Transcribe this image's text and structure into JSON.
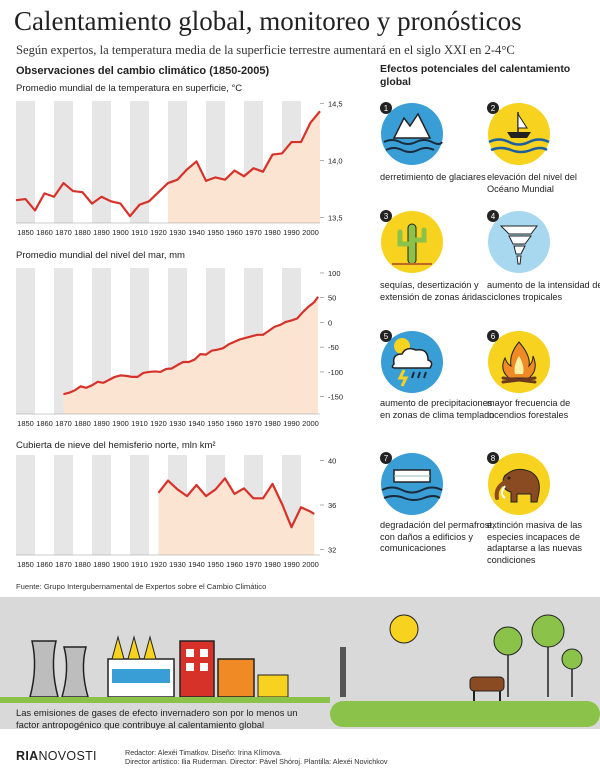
{
  "title": "Calentamiento global, monitoreo y pronósticos",
  "subtitle": "Según expertos, la temperatura media de la superficie terrestre aumentará en el siglo XXI en 2-4°C",
  "observations_title": "Observaciones del cambio climático (1850-2005)",
  "source": "Fuente: Grupo Intergubernamental de Expertos sobre el Cambio Climático",
  "colors": {
    "line": "#d7322a",
    "fill": "#fbe5d2",
    "band": "#e6e6e6",
    "accent_blue": "#3a9ed6",
    "accent_yellow": "#f7d21e",
    "accent_orange": "#f08a24"
  },
  "chart_data": [
    {
      "id": "temperature",
      "type": "line",
      "title": "Promedio mundial de la temperatura en superficie, °C",
      "x_ticks": [
        1850,
        1860,
        1870,
        1880,
        1890,
        1900,
        1910,
        1920,
        1930,
        1940,
        1950,
        1960,
        1970,
        1980,
        1990,
        2000
      ],
      "y_ticks": [
        13.5,
        14.0,
        14.5
      ],
      "y_tick_labels": [
        "13,5",
        "14,0",
        "14,5"
      ],
      "xlim": [
        1845,
        2005
      ],
      "ylim": [
        13.45,
        14.52
      ],
      "fill_from": 1925,
      "x": [
        1845,
        1850,
        1855,
        1860,
        1865,
        1870,
        1875,
        1880,
        1885,
        1890,
        1895,
        1900,
        1905,
        1910,
        1915,
        1920,
        1925,
        1930,
        1935,
        1940,
        1945,
        1950,
        1955,
        1960,
        1965,
        1970,
        1975,
        1980,
        1985,
        1990,
        1995,
        2000,
        2005
      ],
      "y": [
        13.65,
        13.66,
        13.56,
        13.71,
        13.68,
        13.8,
        13.73,
        13.72,
        13.62,
        13.68,
        13.64,
        13.62,
        13.51,
        13.61,
        13.64,
        13.72,
        13.8,
        13.83,
        13.92,
        13.99,
        13.82,
        13.85,
        13.83,
        13.91,
        13.86,
        13.93,
        13.9,
        14.05,
        14.06,
        14.16,
        14.16,
        14.33,
        14.43
      ]
    },
    {
      "id": "sea_level",
      "type": "line",
      "title": "Promedio mundial del nivel del mar, mm",
      "x_ticks": [
        1850,
        1860,
        1870,
        1880,
        1890,
        1900,
        1910,
        1920,
        1930,
        1940,
        1950,
        1960,
        1970,
        1980,
        1990,
        2000
      ],
      "y_ticks": [
        -150,
        -100,
        -50,
        0,
        50,
        100
      ],
      "y_tick_labels": [
        "-150",
        "-100",
        "-50",
        "0",
        "50",
        "100"
      ],
      "xlim": [
        1845,
        2005
      ],
      "ylim": [
        -185,
        110
      ],
      "fill_from": 1845,
      "x": [
        1870,
        1873,
        1876,
        1879,
        1882,
        1885,
        1888,
        1891,
        1894,
        1897,
        1900,
        1903,
        1906,
        1909,
        1912,
        1915,
        1918,
        1921,
        1924,
        1927,
        1930,
        1933,
        1936,
        1939,
        1942,
        1945,
        1948,
        1951,
        1954,
        1957,
        1960,
        1963,
        1966,
        1969,
        1972,
        1975,
        1978,
        1981,
        1984,
        1987,
        1990,
        1993,
        1996,
        1999,
        2002,
        2004
      ],
      "y": [
        -145,
        -142,
        -137,
        -129,
        -132,
        -127,
        -120,
        -122,
        -116,
        -110,
        -107,
        -108,
        -110,
        -110,
        -102,
        -100,
        -99,
        -100,
        -94,
        -93,
        -86,
        -80,
        -80,
        -75,
        -64,
        -65,
        -57,
        -55,
        -52,
        -44,
        -39,
        -34,
        -31,
        -28,
        -25,
        -25,
        -17,
        -9,
        -5,
        1,
        4,
        8,
        21,
        32,
        41,
        52
      ]
    },
    {
      "id": "snow_cover",
      "type": "line",
      "title": "Cubierta de nieve del hemisferio norte, mln km²",
      "x_ticks": [
        1850,
        1860,
        1870,
        1880,
        1890,
        1900,
        1910,
        1920,
        1930,
        1940,
        1950,
        1960,
        1970,
        1980,
        1990,
        2000
      ],
      "y_ticks": [
        32,
        36,
        40
      ],
      "y_tick_labels": [
        "32",
        "36",
        "40"
      ],
      "xlim": [
        1845,
        2005
      ],
      "ylim": [
        31.5,
        40.5
      ],
      "fill_from": 1918,
      "x": [
        1920,
        1925,
        1930,
        1935,
        1940,
        1945,
        1950,
        1955,
        1960,
        1965,
        1970,
        1975,
        1980,
        1985,
        1990,
        1995,
        2000,
        2002
      ],
      "y": [
        37.1,
        38.2,
        37.4,
        36.8,
        37.8,
        36.8,
        37.4,
        38.4,
        37.0,
        37.5,
        36.6,
        36.6,
        37.9,
        36.1,
        34.0,
        35.8,
        35.4,
        35.2
      ]
    }
  ],
  "effects_title": "Efectos potenciales del calentamiento global",
  "effects": [
    {
      "n": "1",
      "icon": "glacier-icon",
      "text": "derretimiento de glaciares"
    },
    {
      "n": "2",
      "icon": "boat-sea-level-icon",
      "text": "elevación del nivel del Océano Mundial"
    },
    {
      "n": "3",
      "icon": "cactus-drought-icon",
      "text": "sequías, desertización y extensión de zonas áridas"
    },
    {
      "n": "4",
      "icon": "tornado-icon",
      "text": "aumento de la intensidad de ciclones tropicales"
    },
    {
      "n": "5",
      "icon": "storm-cloud-icon",
      "text": "aumento de precipitaciones en zonas de clima templado"
    },
    {
      "n": "6",
      "icon": "fire-icon",
      "text": "mayor frecuencia de incendios forestales"
    },
    {
      "n": "7",
      "icon": "permafrost-icon",
      "text": "degradación del permafrost, con daños a edificios y comunicaciones"
    },
    {
      "n": "8",
      "icon": "mammoth-icon",
      "text": "extinción masiva de las especies incapaces de adaptarse a las nuevas condiciones"
    }
  ],
  "bottom_text": "Las emisiones de gases de efecto invernadero son por lo menos un factor antropogénico que contribuye al calentamiento global",
  "footer": {
    "logo_bold": "RIA",
    "logo_thin": "NOVOSTI",
    "credit_line1": "Redactor: Alexéi Timatkov. Diseño: Irina Klímova.",
    "credit_line2": "Director artístico: Ilia Ruderman. Director: Pável Shóroj. Plantilla: Alexéi Novichkov"
  }
}
